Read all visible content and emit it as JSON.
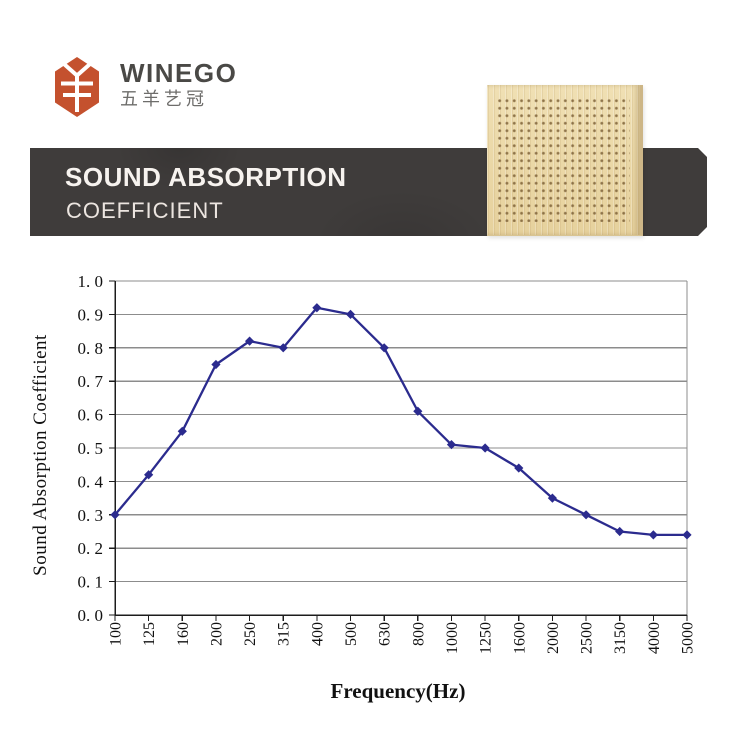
{
  "header": {
    "brand_name": "WINEGO",
    "brand_name_cn": "五羊艺冠",
    "logo_icon": "sheep-hexagon-icon",
    "banner_title": "SOUND ABSORPTION",
    "banner_subtitle": "COEFFICIENT"
  },
  "colors": {
    "accent_orange": "#c4512e",
    "banner_bg": "#3f3c3b",
    "line_navy": "#2b2b8e",
    "gridline_gray": "#8c8c8c",
    "axis_black": "#1c1c1c",
    "label_black": "#111111",
    "panel_beige": "#ead7a6",
    "panel_dot_brown": "#7d6137"
  },
  "chart_data": {
    "type": "line",
    "title": "",
    "xlabel": "Frequency(Hz)",
    "ylabel": "Sound Absorption Coefficient",
    "categories": [
      "100",
      "125",
      "160",
      "200",
      "250",
      "315",
      "400",
      "500",
      "630",
      "800",
      "1000",
      "1250",
      "1600",
      "2000",
      "2500",
      "3150",
      "4000",
      "5000"
    ],
    "values": [
      0.3,
      0.42,
      0.55,
      0.75,
      0.82,
      0.8,
      0.92,
      0.9,
      0.8,
      0.61,
      0.51,
      0.5,
      0.44,
      0.35,
      0.3,
      0.25,
      0.24,
      0.24
    ],
    "ylim": [
      0.0,
      1.0
    ],
    "ytick_step": 0.1,
    "ytick_labels": [
      "0. 0",
      "0. 1",
      "0. 2",
      "0. 3",
      "0. 4",
      "0. 5",
      "0. 6",
      "0. 7",
      "0. 8",
      "0. 9",
      "1. 0"
    ],
    "grid": true,
    "legend": false,
    "marker": "diamond"
  }
}
